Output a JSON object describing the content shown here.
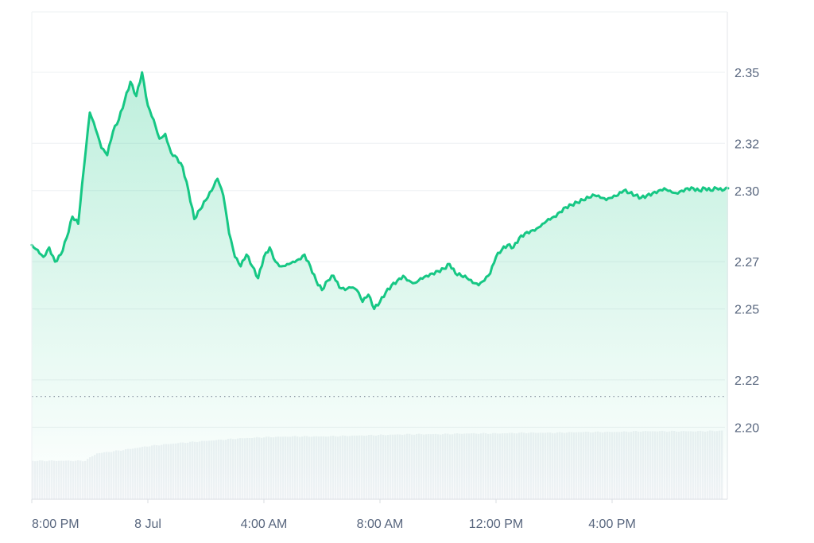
{
  "chart_data": {
    "type": "area",
    "title": "",
    "xlabel": "",
    "ylabel": "",
    "x_ticks": [
      {
        "label": "8:00 PM",
        "hours": 0
      },
      {
        "label": "8 Jul",
        "hours": 4
      },
      {
        "label": "4:00 AM",
        "hours": 8
      },
      {
        "label": "8:00 AM",
        "hours": 12
      },
      {
        "label": "12:00 PM",
        "hours": 16
      },
      {
        "label": "4:00 PM",
        "hours": 20
      }
    ],
    "y_ticks": [
      "2.35",
      "2.32",
      "2.30",
      "2.27",
      "2.25",
      "2.22",
      "2.20"
    ],
    "ylim": [
      2.197,
      2.361
    ],
    "reference_price": 2.213,
    "grid": true,
    "colors": {
      "line": "#16c784",
      "fill_top": "#16c784",
      "volume": "#eff2f5",
      "grid": "#eef0f3",
      "reference": "#7d8796",
      "tick_text": "#58667e"
    },
    "series": [
      {
        "x_hours": [
          0.0,
          0.2,
          0.4,
          0.6,
          0.8,
          1.0,
          1.2,
          1.4,
          1.6,
          1.8,
          2.0,
          2.2,
          2.4,
          2.6,
          2.8,
          3.0,
          3.2,
          3.4,
          3.6,
          3.8,
          4.0,
          4.2,
          4.4,
          4.6,
          4.8,
          5.0,
          5.2,
          5.4,
          5.6,
          5.8,
          6.0,
          6.2,
          6.4,
          6.6,
          6.8,
          7.0,
          7.2,
          7.4,
          7.6,
          7.8,
          8.0,
          8.2,
          8.4,
          8.6,
          8.8,
          9.0,
          9.2,
          9.4,
          9.6,
          9.8,
          10.0,
          10.2,
          10.4,
          10.6,
          10.8,
          11.0,
          11.2,
          11.4,
          11.6,
          11.8,
          12.0,
          12.2,
          12.4,
          12.6,
          12.8,
          13.0,
          13.2,
          13.4,
          13.6,
          13.8,
          14.0,
          14.2,
          14.4,
          14.6,
          14.8,
          15.0,
          15.2,
          15.4,
          15.6,
          15.8,
          16.0,
          16.2,
          16.4,
          16.6,
          16.8,
          17.0,
          17.2,
          17.4,
          17.6,
          17.8,
          18.0,
          18.2,
          18.4,
          18.6,
          18.8,
          19.0,
          19.2,
          19.4,
          19.6,
          19.8,
          20.0,
          20.2,
          20.4,
          20.6,
          20.8,
          21.0,
          21.2,
          21.4,
          21.6,
          21.8,
          22.0,
          22.2,
          22.4,
          22.6,
          22.8,
          23.0,
          23.2,
          23.4,
          23.6,
          23.8,
          24.0
        ],
        "values": [
          2.277,
          2.275,
          2.272,
          2.276,
          2.27,
          2.273,
          2.28,
          2.289,
          2.286,
          2.31,
          2.333,
          2.326,
          2.318,
          2.315,
          2.325,
          2.33,
          2.338,
          2.346,
          2.34,
          2.35,
          2.336,
          2.33,
          2.322,
          2.324,
          2.316,
          2.314,
          2.31,
          2.3,
          2.288,
          2.292,
          2.296,
          2.3,
          2.305,
          2.298,
          2.282,
          2.272,
          2.268,
          2.273,
          2.268,
          2.263,
          2.272,
          2.276,
          2.27,
          2.268,
          2.269,
          2.27,
          2.271,
          2.273,
          2.268,
          2.262,
          2.258,
          2.262,
          2.264,
          2.259,
          2.258,
          2.259,
          2.258,
          2.253,
          2.256,
          2.25,
          2.253,
          2.257,
          2.26,
          2.262,
          2.264,
          2.262,
          2.261,
          2.263,
          2.264,
          2.265,
          2.266,
          2.267,
          2.269,
          2.265,
          2.264,
          2.263,
          2.261,
          2.26,
          2.262,
          2.265,
          2.272,
          2.275,
          2.277,
          2.276,
          2.28,
          2.282,
          2.283,
          2.284,
          2.286,
          2.288,
          2.289,
          2.291,
          2.293,
          2.294,
          2.295,
          2.296,
          2.297,
          2.298,
          2.297,
          2.296,
          2.297,
          2.298,
          2.3,
          2.299,
          2.298,
          2.297,
          2.298,
          2.299,
          2.3,
          2.301,
          2.3,
          2.299,
          2.3,
          2.301,
          2.301,
          2.3,
          2.301,
          2.3,
          2.301,
          2.3,
          2.301
        ]
      }
    ],
    "volume": {
      "x_hours": [
        0,
        1.8,
        2.2,
        3.0,
        4.0,
        5.0,
        6.0,
        7.0,
        8.0,
        9.0,
        10.0,
        11.0,
        12.0,
        13.0,
        14.0,
        15.0,
        16.0,
        17.0,
        18.0,
        19.0,
        20.0,
        21.0,
        22.0,
        23.0,
        24.0
      ],
      "values": [
        0.52,
        0.52,
        0.62,
        0.66,
        0.72,
        0.76,
        0.79,
        0.82,
        0.84,
        0.85,
        0.85,
        0.86,
        0.87,
        0.88,
        0.88,
        0.89,
        0.89,
        0.9,
        0.9,
        0.91,
        0.91,
        0.92,
        0.92,
        0.92,
        0.93
      ]
    }
  }
}
